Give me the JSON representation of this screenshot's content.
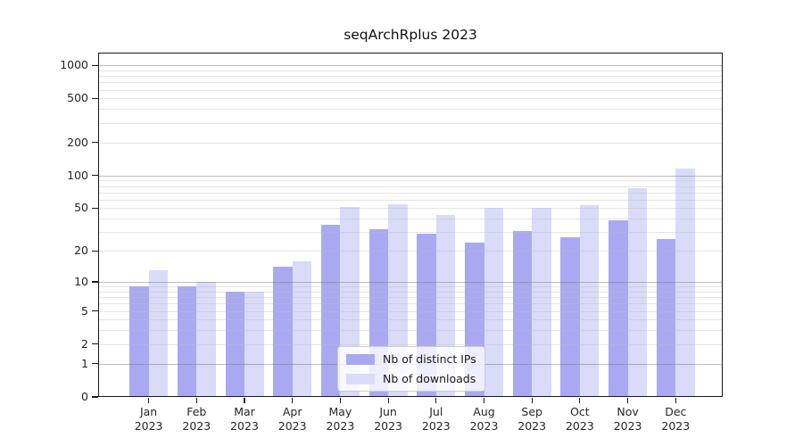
{
  "title": "seqArchRplus 2023",
  "chart_data": {
    "type": "bar",
    "title": "seqArchRplus 2023",
    "categories": [
      "Jan 2023",
      "Feb 2023",
      "Mar 2023",
      "Apr 2023",
      "May 2023",
      "Jun 2023",
      "Jul 2023",
      "Aug 2023",
      "Sep 2023",
      "Oct 2023",
      "Nov 2023",
      "Dec 2023"
    ],
    "series": [
      {
        "name": "Nb of distinct IPs",
        "color": "#a9a9f1",
        "values": [
          9,
          9,
          8,
          14,
          35,
          32,
          29,
          24,
          31,
          27,
          39,
          26
        ]
      },
      {
        "name": "Nb of downloads",
        "color": "#dadaf9",
        "values": [
          13,
          10,
          8,
          16,
          51,
          54,
          43,
          50,
          50,
          53,
          76,
          115
        ]
      }
    ],
    "xlabel": "",
    "ylabel": "",
    "yscale": "log1p",
    "ylim": [
      0,
      1300
    ],
    "y_ticks": [
      0,
      1,
      2,
      5,
      10,
      20,
      50,
      100,
      200,
      500,
      1000
    ],
    "y_major_grid": [
      1,
      10,
      100,
      1000
    ],
    "y_minor_grid": [
      2,
      3,
      4,
      5,
      6,
      7,
      8,
      9,
      20,
      30,
      40,
      50,
      60,
      70,
      80,
      90,
      200,
      300,
      400,
      500,
      600,
      700,
      800,
      900
    ],
    "grid": true,
    "legend_position": "lower center",
    "axis_color": "#1a1a1a",
    "major_grid_color": "rgba(110,110,110,0.45)",
    "minor_grid_color": "rgba(190,190,190,0.40)"
  }
}
